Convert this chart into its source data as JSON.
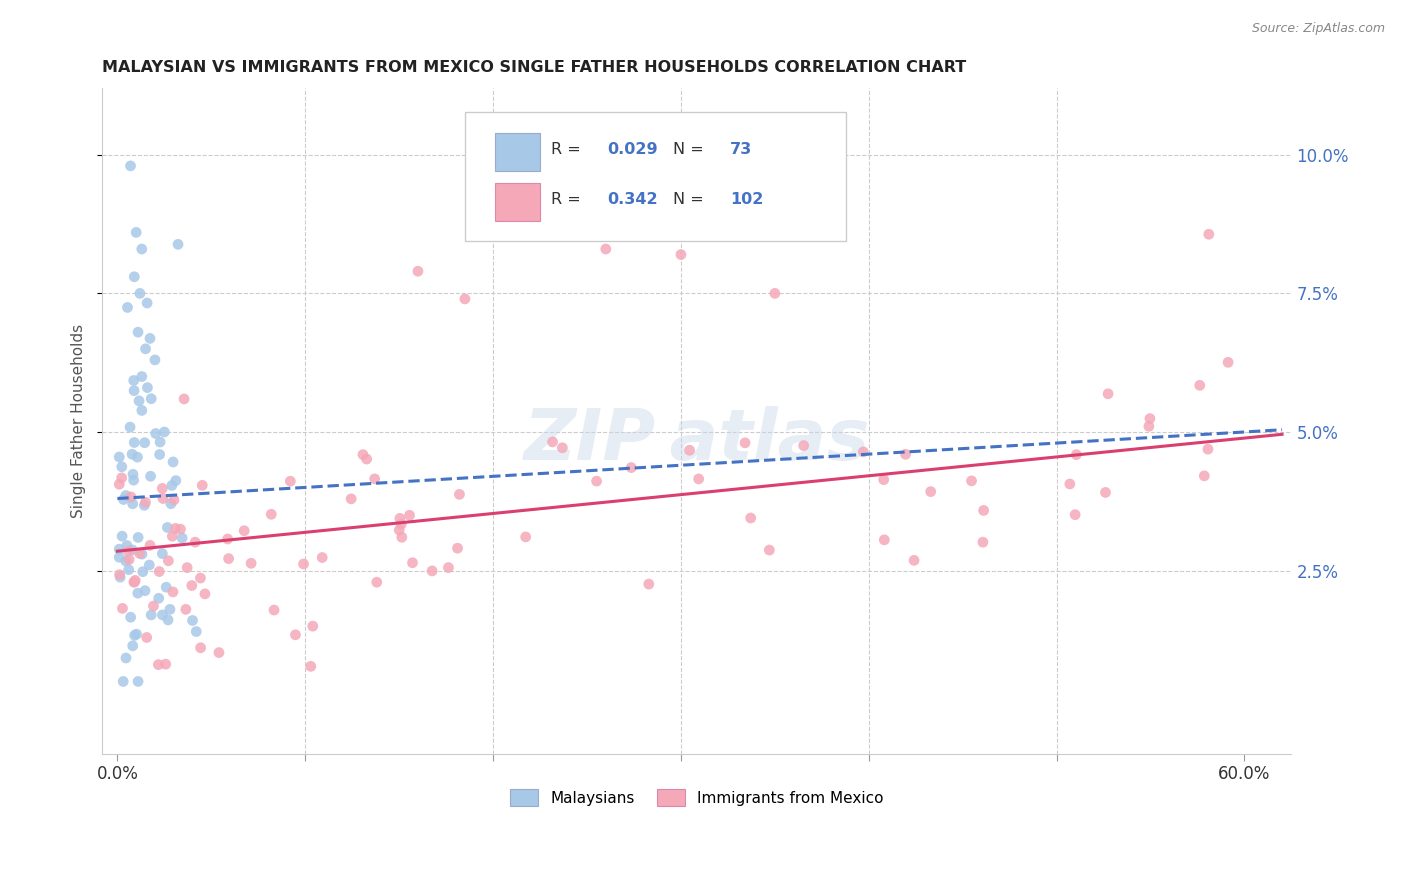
{
  "title": "MALAYSIAN VS IMMIGRANTS FROM MEXICO SINGLE FATHER HOUSEHOLDS CORRELATION CHART",
  "source": "Source: ZipAtlas.com",
  "ylabel": "Single Father Households",
  "ytick_vals": [
    0.025,
    0.05,
    0.075,
    0.1
  ],
  "ytick_labels": [
    "2.5%",
    "5.0%",
    "7.5%",
    "10.0%"
  ],
  "xlim": [
    -0.008,
    0.625
  ],
  "ylim": [
    -0.008,
    0.112
  ],
  "scatter_blue": "#a8c8e8",
  "scatter_pink": "#f4a8b8",
  "line_blue": "#4472c4",
  "line_pink": "#d94070",
  "grid_color": "#cccccc",
  "ytick_color": "#4472c4",
  "legend_R1": "0.029",
  "legend_N1": "73",
  "legend_R2": "0.342",
  "legend_N2": "102",
  "mal_intercept": 0.038,
  "mal_slope": 0.02,
  "mex_intercept": 0.0285,
  "mex_slope": 0.034
}
